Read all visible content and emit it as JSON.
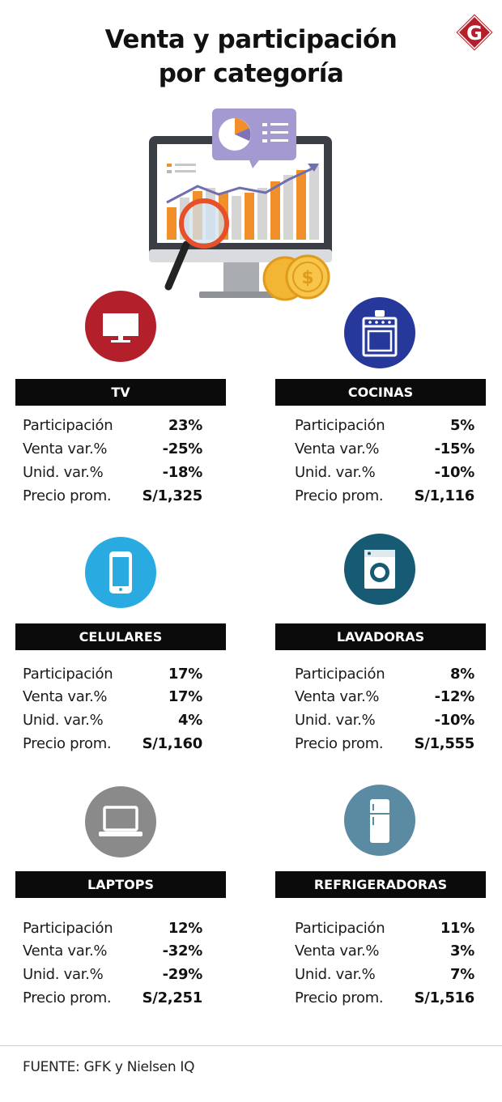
{
  "title": {
    "line1": "Venta y participación",
    "line2": "por categoría"
  },
  "logo_letter": "G",
  "colors": {
    "header_bg": "#0b0b0b",
    "tv": "#b3202c",
    "cocinas": "#26389a",
    "celulares": "#29abe2",
    "lavadoras": "#175a73",
    "laptops": "#8a8a8a",
    "refrigeradoras": "#5b8ba3",
    "logo": "#b3202c"
  },
  "categories": [
    {
      "name": "TV",
      "icon": "tv-icon",
      "stats": [
        {
          "label": "Participación",
          "value": "23%"
        },
        {
          "label": "Venta var.%",
          "value": "-25%"
        },
        {
          "label": "Unid. var.%",
          "value": "-18%"
        },
        {
          "label": "Precio prom.",
          "value": "S/1,325"
        }
      ]
    },
    {
      "name": "COCINAS",
      "icon": "stove-icon",
      "stats": [
        {
          "label": "Participación",
          "value": "5%"
        },
        {
          "label": "Venta var.%",
          "value": "-15%"
        },
        {
          "label": "Unid. var.%",
          "value": "-10%"
        },
        {
          "label": "Precio prom.",
          "value": "S/1,116"
        }
      ]
    },
    {
      "name": "CELULARES",
      "icon": "smartphone-icon",
      "stats": [
        {
          "label": "Participación",
          "value": "17%"
        },
        {
          "label": "Venta var.%",
          "value": "17%"
        },
        {
          "label": "Unid. var.%",
          "value": "4%"
        },
        {
          "label": "Precio prom.",
          "value": "S/1,160"
        }
      ]
    },
    {
      "name": "LAVADORAS",
      "icon": "washing-machine-icon",
      "stats": [
        {
          "label": "Participación",
          "value": "8%"
        },
        {
          "label": "Venta var.%",
          "value": "-12%"
        },
        {
          "label": "Unid. var.%",
          "value": "-10%"
        },
        {
          "label": "Precio prom.",
          "value": "S/1,555"
        }
      ]
    },
    {
      "name": "LAPTOPS",
      "icon": "laptop-icon",
      "stats": [
        {
          "label": "Participación",
          "value": "12%"
        },
        {
          "label": "Venta var.%",
          "value": "-32%"
        },
        {
          "label": "Unid. var.%",
          "value": "-29%"
        },
        {
          "label": "Precio prom.",
          "value": "S/2,251"
        }
      ]
    },
    {
      "name": "REFRIGERADORAS",
      "icon": "refrigerator-icon",
      "stats": [
        {
          "label": "Participación",
          "value": "11%"
        },
        {
          "label": "Venta var.%",
          "value": "3%"
        },
        {
          "label": "Unid. var.%",
          "value": "7%"
        },
        {
          "label": "Precio prom.",
          "value": "S/1,516"
        }
      ]
    }
  ],
  "source": "FUENTE: GFK y Nielsen IQ",
  "chart_data": {
    "type": "table",
    "title": "Venta y participación por categoría",
    "columns": [
      "Participación",
      "Venta var.%",
      "Unid. var.%",
      "Precio prom."
    ],
    "rows": [
      {
        "category": "TV",
        "values": [
          "23%",
          "-25%",
          "-18%",
          "S/1,325"
        ]
      },
      {
        "category": "COCINAS",
        "values": [
          "5%",
          "-15%",
          "-10%",
          "S/1,116"
        ]
      },
      {
        "category": "CELULARES",
        "values": [
          "17%",
          "17%",
          "4%",
          "S/1,160"
        ]
      },
      {
        "category": "LAVADORAS",
        "values": [
          "8%",
          "-12%",
          "-10%",
          "S/1,555"
        ]
      },
      {
        "category": "LAPTOPS",
        "values": [
          "12%",
          "-32%",
          "-29%",
          "S/2,251"
        ]
      },
      {
        "category": "REFRIGERADORAS",
        "values": [
          "11%",
          "3%",
          "7%",
          "S/1,516"
        ]
      }
    ]
  }
}
